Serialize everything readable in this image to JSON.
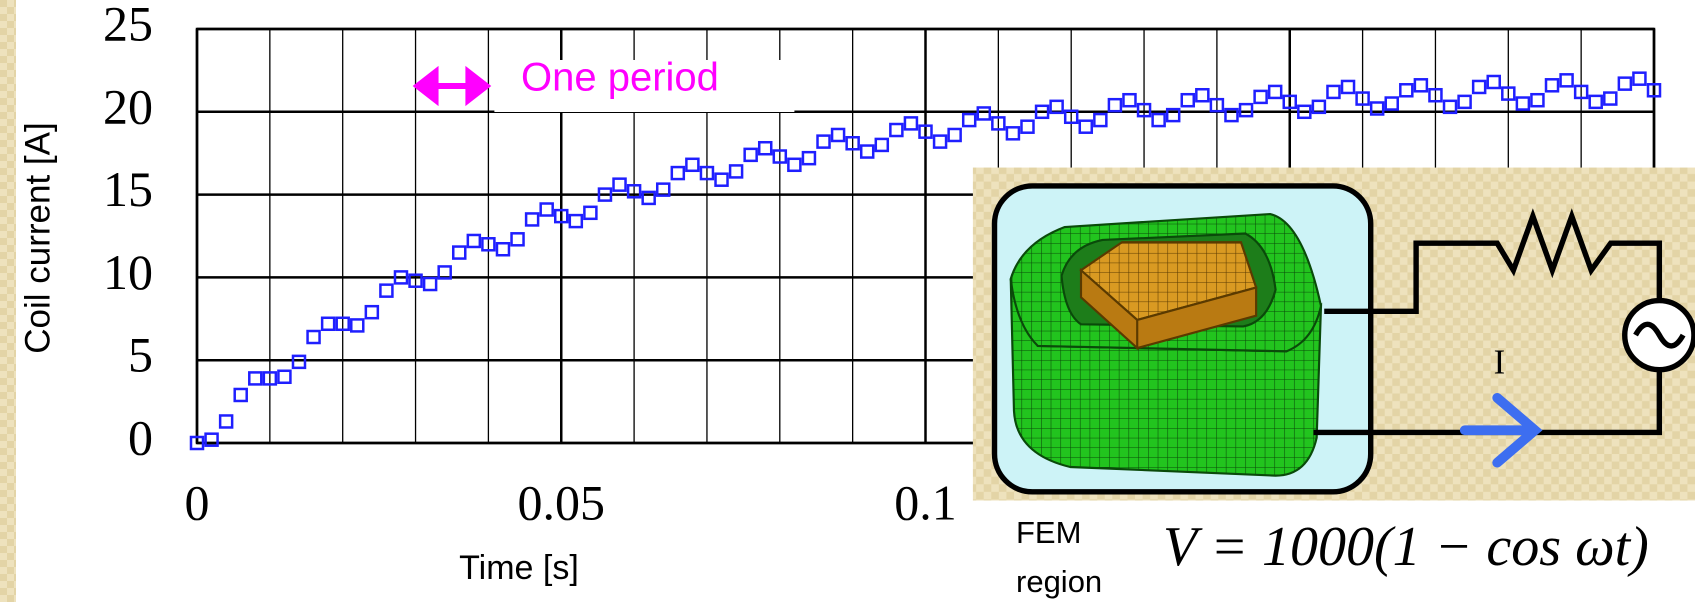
{
  "chart_data": {
    "type": "scatter",
    "marker": "square",
    "color": "#1f1fff",
    "xlabel": "Time [s]",
    "ylabel": "Coil current [A]",
    "annotation": "One period",
    "annotation_color": "#ff00ff",
    "xlim": [
      0,
      0.2
    ],
    "ylim": [
      0,
      25
    ],
    "xticks": [
      0,
      0.05,
      0.1
    ],
    "yticks": [
      0,
      5,
      10,
      15,
      20,
      25
    ],
    "xgrid_major": 0.05,
    "xgrid_minor": 0.01,
    "grid": true,
    "x": [
      0,
      0.002,
      0.004,
      0.006,
      0.008,
      0.01,
      0.012,
      0.014,
      0.016,
      0.018,
      0.02,
      0.022,
      0.024,
      0.026,
      0.028,
      0.03,
      0.032,
      0.034,
      0.036,
      0.038,
      0.04,
      0.042,
      0.044,
      0.046,
      0.048,
      0.05,
      0.052,
      0.054,
      0.056,
      0.058,
      0.06,
      0.062,
      0.064,
      0.066,
      0.068,
      0.07,
      0.072,
      0.074,
      0.076,
      0.078,
      0.08,
      0.082,
      0.084,
      0.086,
      0.088,
      0.09,
      0.092,
      0.094,
      0.096,
      0.098,
      0.1,
      0.102,
      0.104,
      0.106,
      0.108,
      0.11,
      0.112,
      0.114,
      0.116,
      0.118,
      0.12,
      0.122,
      0.124,
      0.126,
      0.128,
      0.13,
      0.132,
      0.134,
      0.136,
      0.138,
      0.14,
      0.142,
      0.144,
      0.146,
      0.148,
      0.15,
      0.152,
      0.154,
      0.156,
      0.158,
      0.16,
      0.162,
      0.164,
      0.166,
      0.168,
      0.17,
      0.172,
      0.174,
      0.176,
      0.178,
      0.18,
      0.182,
      0.184,
      0.186,
      0.188,
      0.19,
      0.192,
      0.194,
      0.196,
      0.198,
      0.2
    ],
    "values": [
      0,
      0.2,
      1.3,
      2.9,
      3.9,
      3.9,
      4.0,
      4.9,
      6.4,
      7.2,
      7.2,
      7.1,
      7.9,
      9.2,
      10.0,
      9.8,
      9.6,
      10.3,
      11.5,
      12.2,
      12.0,
      11.7,
      12.3,
      13.5,
      14.1,
      13.7,
      13.4,
      13.9,
      15.0,
      15.6,
      15.2,
      14.8,
      15.3,
      16.3,
      16.8,
      16.3,
      15.9,
      16.4,
      17.4,
      17.8,
      17.3,
      16.8,
      17.2,
      18.2,
      18.6,
      18.1,
      17.6,
      18.0,
      18.9,
      19.3,
      18.8,
      18.2,
      18.6,
      19.5,
      19.9,
      19.3,
      18.7,
      19.1,
      20.0,
      20.3,
      19.7,
      19.1,
      19.5,
      20.4,
      20.7,
      20.1,
      19.5,
      19.8,
      20.7,
      21.0,
      20.4,
      19.8,
      20.1,
      20.9,
      21.2,
      20.6,
      20.0,
      20.3,
      21.2,
      21.5,
      20.8,
      20.2,
      20.5,
      21.3,
      21.6,
      21.0,
      20.3,
      20.6,
      21.5,
      21.8,
      21.1,
      20.5,
      20.7,
      21.6,
      21.9,
      21.2,
      20.6,
      20.8,
      21.7,
      22.0,
      21.3
    ],
    "inset": {
      "region_label": [
        "FEM",
        "region"
      ],
      "current_label": "I",
      "equation": "V = 1000(1 − cos ωt)"
    }
  }
}
